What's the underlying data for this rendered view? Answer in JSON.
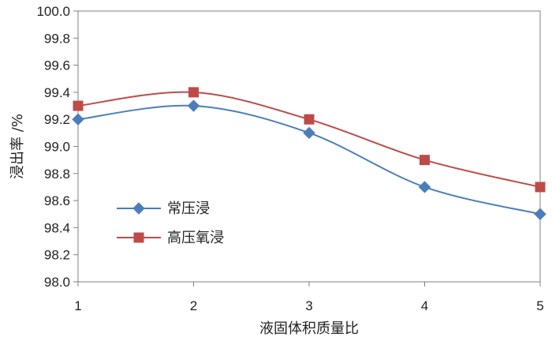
{
  "chart_data": {
    "type": "line",
    "xlabel": "液固体积质量比",
    "ylabel": "浸出率 /%",
    "x": [
      1,
      2,
      3,
      4,
      5
    ],
    "xlim": [
      1,
      5
    ],
    "ylim": [
      98.0,
      100.0
    ],
    "ytick_step": 0.2,
    "grid": false,
    "legend_position": "center-left",
    "series": [
      {
        "name": "常压浸",
        "values": [
          99.2,
          99.3,
          99.1,
          98.7,
          98.5
        ],
        "color": "#4a7ebb",
        "marker": "diamond"
      },
      {
        "name": "高压氧浸",
        "values": [
          99.3,
          99.4,
          99.2,
          98.9,
          98.7
        ],
        "color": "#be4b48",
        "marker": "square"
      }
    ]
  }
}
